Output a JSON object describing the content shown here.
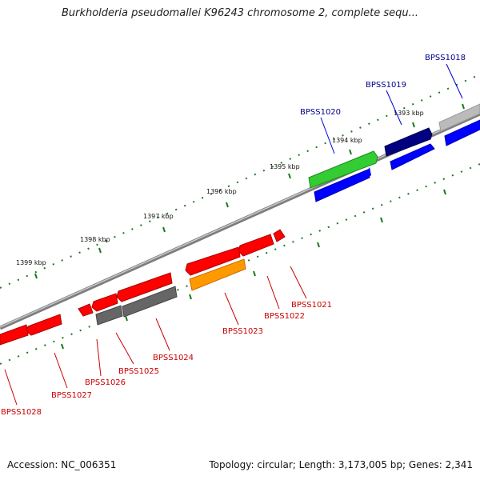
{
  "title": "Burkholderia pseudomallei K96243 chromosome 2, complete sequ...",
  "footer": {
    "accession": "Accession: NC_006351",
    "summary": "Topology: circular; Length: 3,173,005 bp; Genes: 2,341"
  },
  "tick_labels": [
    "1393 kbp",
    "1394 kbp",
    "1395 kbp",
    "1396 kbp",
    "1397 kbp",
    "1398 kbp",
    "1399 kbp"
  ],
  "genes_forward": [
    "BPSS1018",
    "BPSS1019",
    "BPSS1020"
  ],
  "genes_reverse": [
    "BPSS1021",
    "BPSS1022",
    "BPSS1023",
    "BPSS1024",
    "BPSS1025",
    "BPSS1026",
    "BPSS1027",
    "BPSS1028"
  ],
  "colors": {
    "forward_label": "#00008b",
    "reverse_label": "#cc0000",
    "backbone": "#8a8a8a",
    "tick": "#1a7a1a",
    "red_gene": "#ff0000",
    "blue_gene": "#0000ff",
    "navy_gene": "#000080",
    "green_gene": "#33cc33",
    "gray_gene": "#666666",
    "silver_gene": "#bbbbbb",
    "orange_gene": "#ff9900"
  }
}
